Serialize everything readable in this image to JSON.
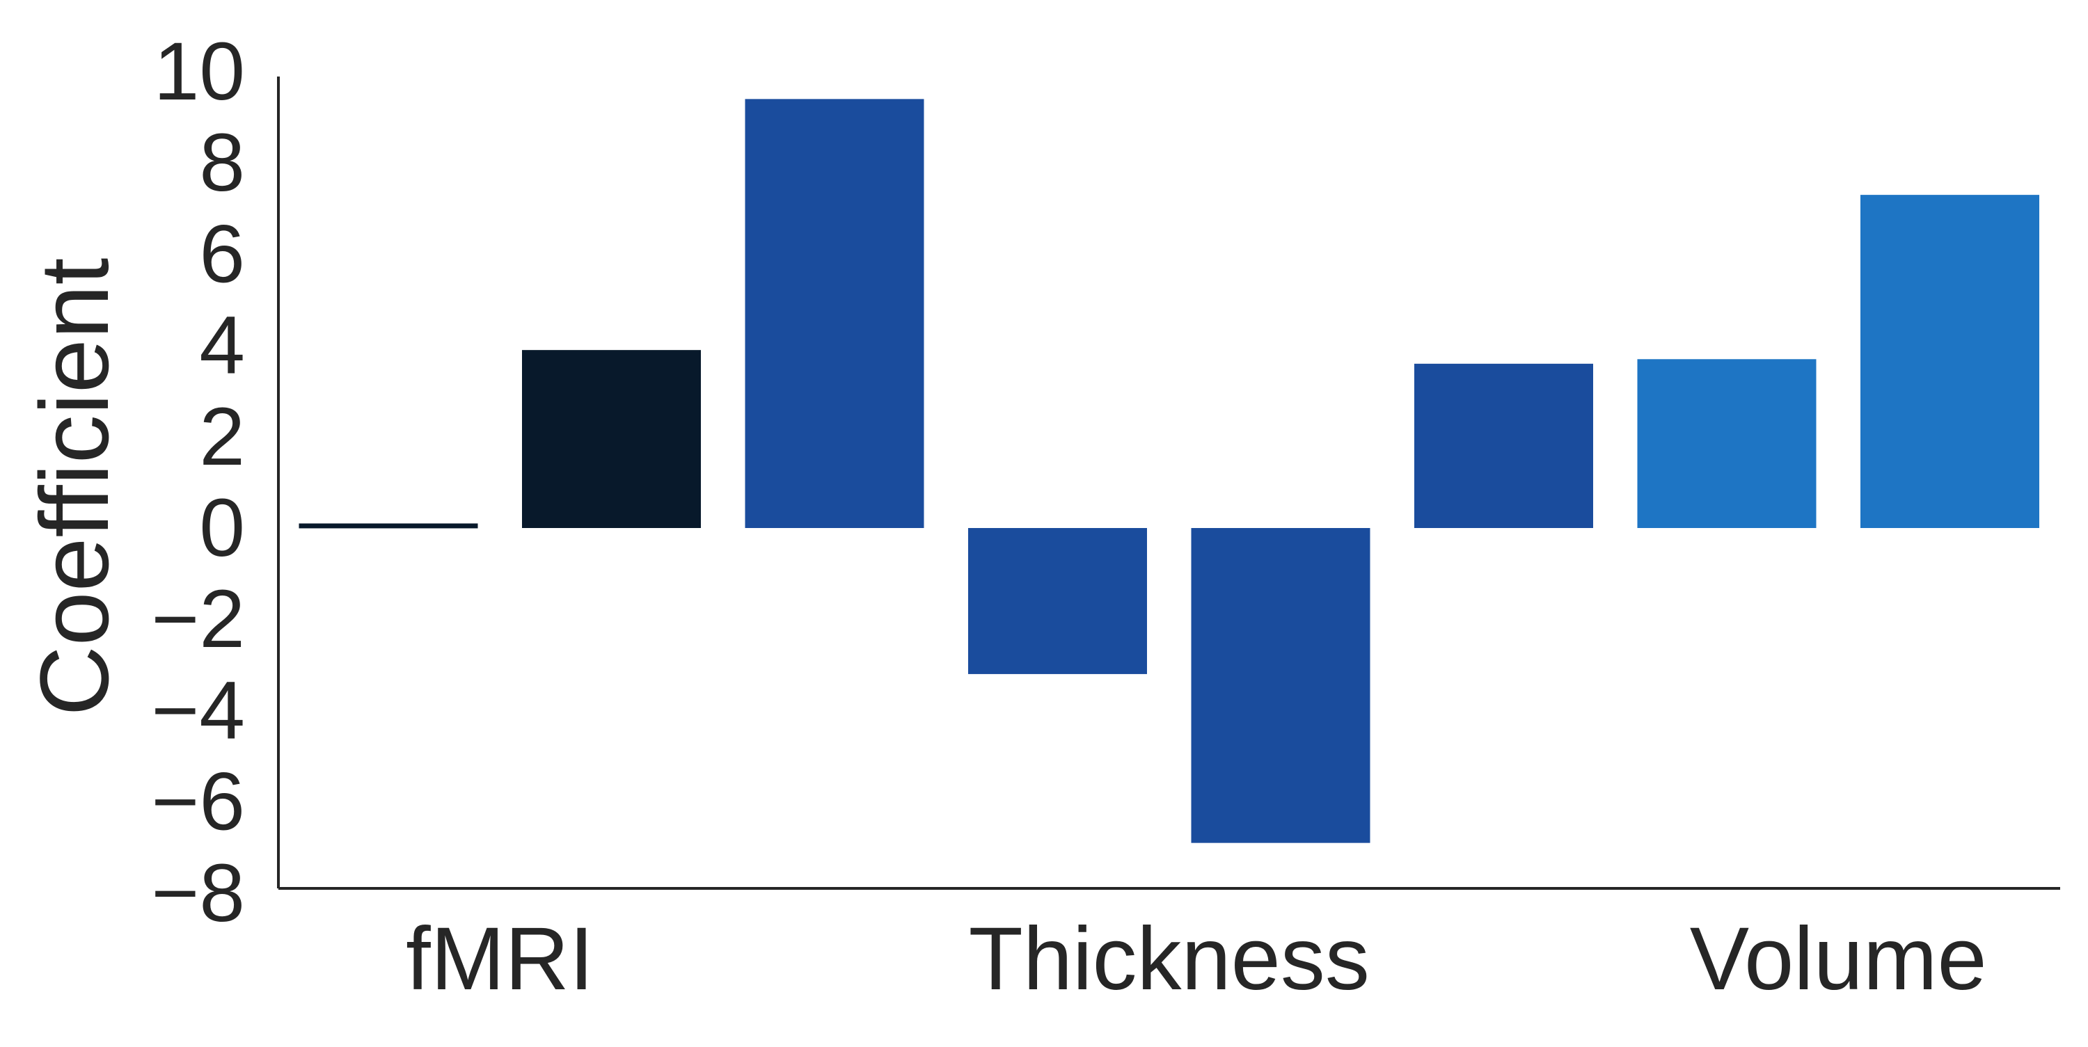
{
  "chart_data": {
    "type": "bar",
    "title": "",
    "xlabel": "",
    "ylabel": "Coefficient",
    "ylim": [
      -8,
      10
    ],
    "yticks": [
      -8,
      -6,
      -4,
      -2,
      0,
      2,
      4,
      6,
      8,
      10
    ],
    "ytick_labels": [
      "−8",
      "−6",
      "−4",
      "−2",
      "0",
      "2",
      "4",
      "6",
      "8",
      "10"
    ],
    "grid": false,
    "legend": "none",
    "values": [
      0.1,
      3.9,
      9.4,
      -3.2,
      -6.9,
      3.6,
      3.7,
      7.3
    ],
    "colors": [
      "#08192B",
      "#08192B",
      "#1A4C9D",
      "#1A4C9D",
      "#1A4C9D",
      "#1A4C9D",
      "#1E75C4",
      "#1E75C4"
    ],
    "category_labels": [
      {
        "text": "fMRI",
        "at_bar": 0.5
      },
      {
        "text": "Thickness",
        "at_bar": 3.5
      },
      {
        "text": "Volume",
        "at_bar": 6.5
      }
    ]
  }
}
